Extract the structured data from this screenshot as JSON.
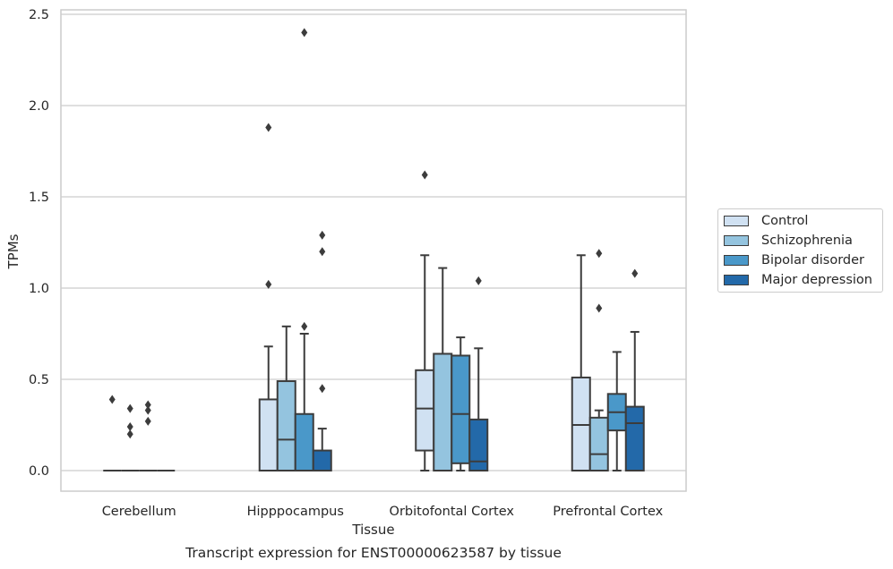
{
  "chart_data": {
    "type": "box",
    "title": "",
    "caption": "Transcript expression for ENST00000623587 by tissue",
    "xlabel": "Tissue",
    "ylabel": "TPMs",
    "ylim": [
      -0.12,
      2.53
    ],
    "yticks": [
      0.0,
      0.5,
      1.0,
      1.5,
      2.0,
      2.5
    ],
    "ytick_labels": [
      "0.0",
      "0.5",
      "1.0",
      "1.5",
      "2.0",
      "2.5"
    ],
    "grid": "horizontal",
    "legend_position": "center-right outside",
    "categories": [
      "Cerebellum",
      "Hipppocampus",
      "Orbitofontal Cortex",
      "Prefrontal Cortex"
    ],
    "series": [
      {
        "name": "Control",
        "color": "#d0e1f2",
        "boxes": [
          {
            "min": 0,
            "q1": 0,
            "median": 0,
            "q3": 0,
            "max": 0,
            "outliers": [
              0.39
            ]
          },
          {
            "min": 0,
            "q1": 0,
            "median": 0,
            "q3": 0.39,
            "max": 0.68,
            "outliers": [
              1.02,
              1.88
            ]
          },
          {
            "min": 0,
            "q1": 0.11,
            "median": 0.34,
            "q3": 0.55,
            "max": 1.18,
            "outliers": [
              1.62
            ]
          },
          {
            "min": 0,
            "q1": 0,
            "median": 0.25,
            "q3": 0.51,
            "max": 1.18,
            "outliers": []
          }
        ]
      },
      {
        "name": "Schizophrenia",
        "color": "#94c4df",
        "boxes": [
          {
            "min": 0,
            "q1": 0,
            "median": 0,
            "q3": 0,
            "max": 0,
            "outliers": [
              0.2,
              0.24,
              0.34
            ]
          },
          {
            "min": 0,
            "q1": 0,
            "median": 0.17,
            "q3": 0.49,
            "max": 0.79,
            "outliers": []
          },
          {
            "min": 0,
            "q1": 0,
            "median": 0.64,
            "q3": 0.64,
            "max": 1.11,
            "outliers": []
          },
          {
            "min": 0,
            "q1": 0,
            "median": 0.09,
            "q3": 0.29,
            "max": 0.33,
            "outliers": [
              0.89,
              1.19
            ]
          }
        ]
      },
      {
        "name": "Bipolar disorder",
        "color": "#4a98c9",
        "boxes": [
          {
            "min": 0,
            "q1": 0,
            "median": 0,
            "q3": 0,
            "max": 0,
            "outliers": [
              0.27,
              0.33,
              0.36
            ]
          },
          {
            "min": 0,
            "q1": 0,
            "median": 0,
            "q3": 0.31,
            "max": 0.75,
            "outliers": [
              0.79,
              2.4
            ]
          },
          {
            "min": 0,
            "q1": 0.04,
            "median": 0.31,
            "q3": 0.63,
            "max": 0.73,
            "outliers": []
          },
          {
            "min": 0,
            "q1": 0.22,
            "median": 0.32,
            "q3": 0.42,
            "max": 0.65,
            "outliers": []
          }
        ]
      },
      {
        "name": "Major depression",
        "color": "#2369a9",
        "boxes": [
          {
            "min": 0,
            "q1": 0,
            "median": 0,
            "q3": 0,
            "max": 0,
            "outliers": []
          },
          {
            "min": 0,
            "q1": 0,
            "median": 0,
            "q3": 0.11,
            "max": 0.23,
            "outliers": [
              0.45,
              1.2,
              1.29
            ]
          },
          {
            "min": 0,
            "q1": 0,
            "median": 0.05,
            "q3": 0.28,
            "max": 0.67,
            "outliers": [
              1.04
            ]
          },
          {
            "min": 0,
            "q1": 0,
            "median": 0.26,
            "q3": 0.35,
            "max": 0.76,
            "outliers": [
              1.08
            ]
          }
        ]
      }
    ]
  }
}
